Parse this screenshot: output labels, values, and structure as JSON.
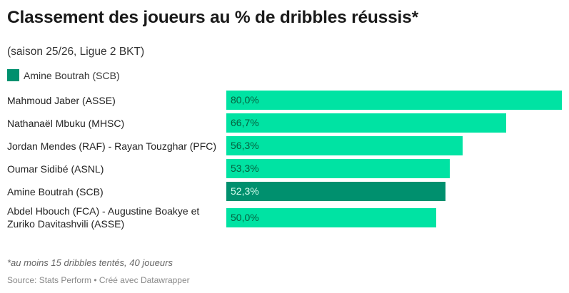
{
  "title": "Classement des joueurs au % de dribbles réussis*",
  "subtitle": "(saison 25/26, Ligue 2 BKT)",
  "legend": {
    "label": "Amine Boutrah (SCB)",
    "color": "#00906e"
  },
  "note": "*au moins 15 dribbles tentés, 40 joueurs",
  "source": "Source: Stats Perform • Créé avec Datawrapper",
  "chart_data": {
    "type": "bar",
    "orientation": "horizontal",
    "categories": [
      "Mahmoud Jaber (ASSE)",
      "Nathanaël Mbuku (MHSC)",
      "Jordan Mendes (RAF) - Rayan Touzghar (PFC)",
      "Oumar Sidibé (ASNL)",
      "Amine Boutrah (SCB)",
      "Abdel Hbouch (FCA) - Augustine Boakye et Zuriko Davitashvili (ASSE)"
    ],
    "values": [
      80.0,
      66.7,
      56.3,
      53.3,
      52.3,
      50.0
    ],
    "data_labels": [
      "80,0%",
      "66,7%",
      "56,3%",
      "53,3%",
      "52,3%",
      "50,0%"
    ],
    "highlight": "Amine Boutrah (SCB)",
    "colors": {
      "default": "#00e3a3",
      "highlight": "#00906e"
    },
    "xlim": [
      0,
      80
    ],
    "grid": false
  }
}
